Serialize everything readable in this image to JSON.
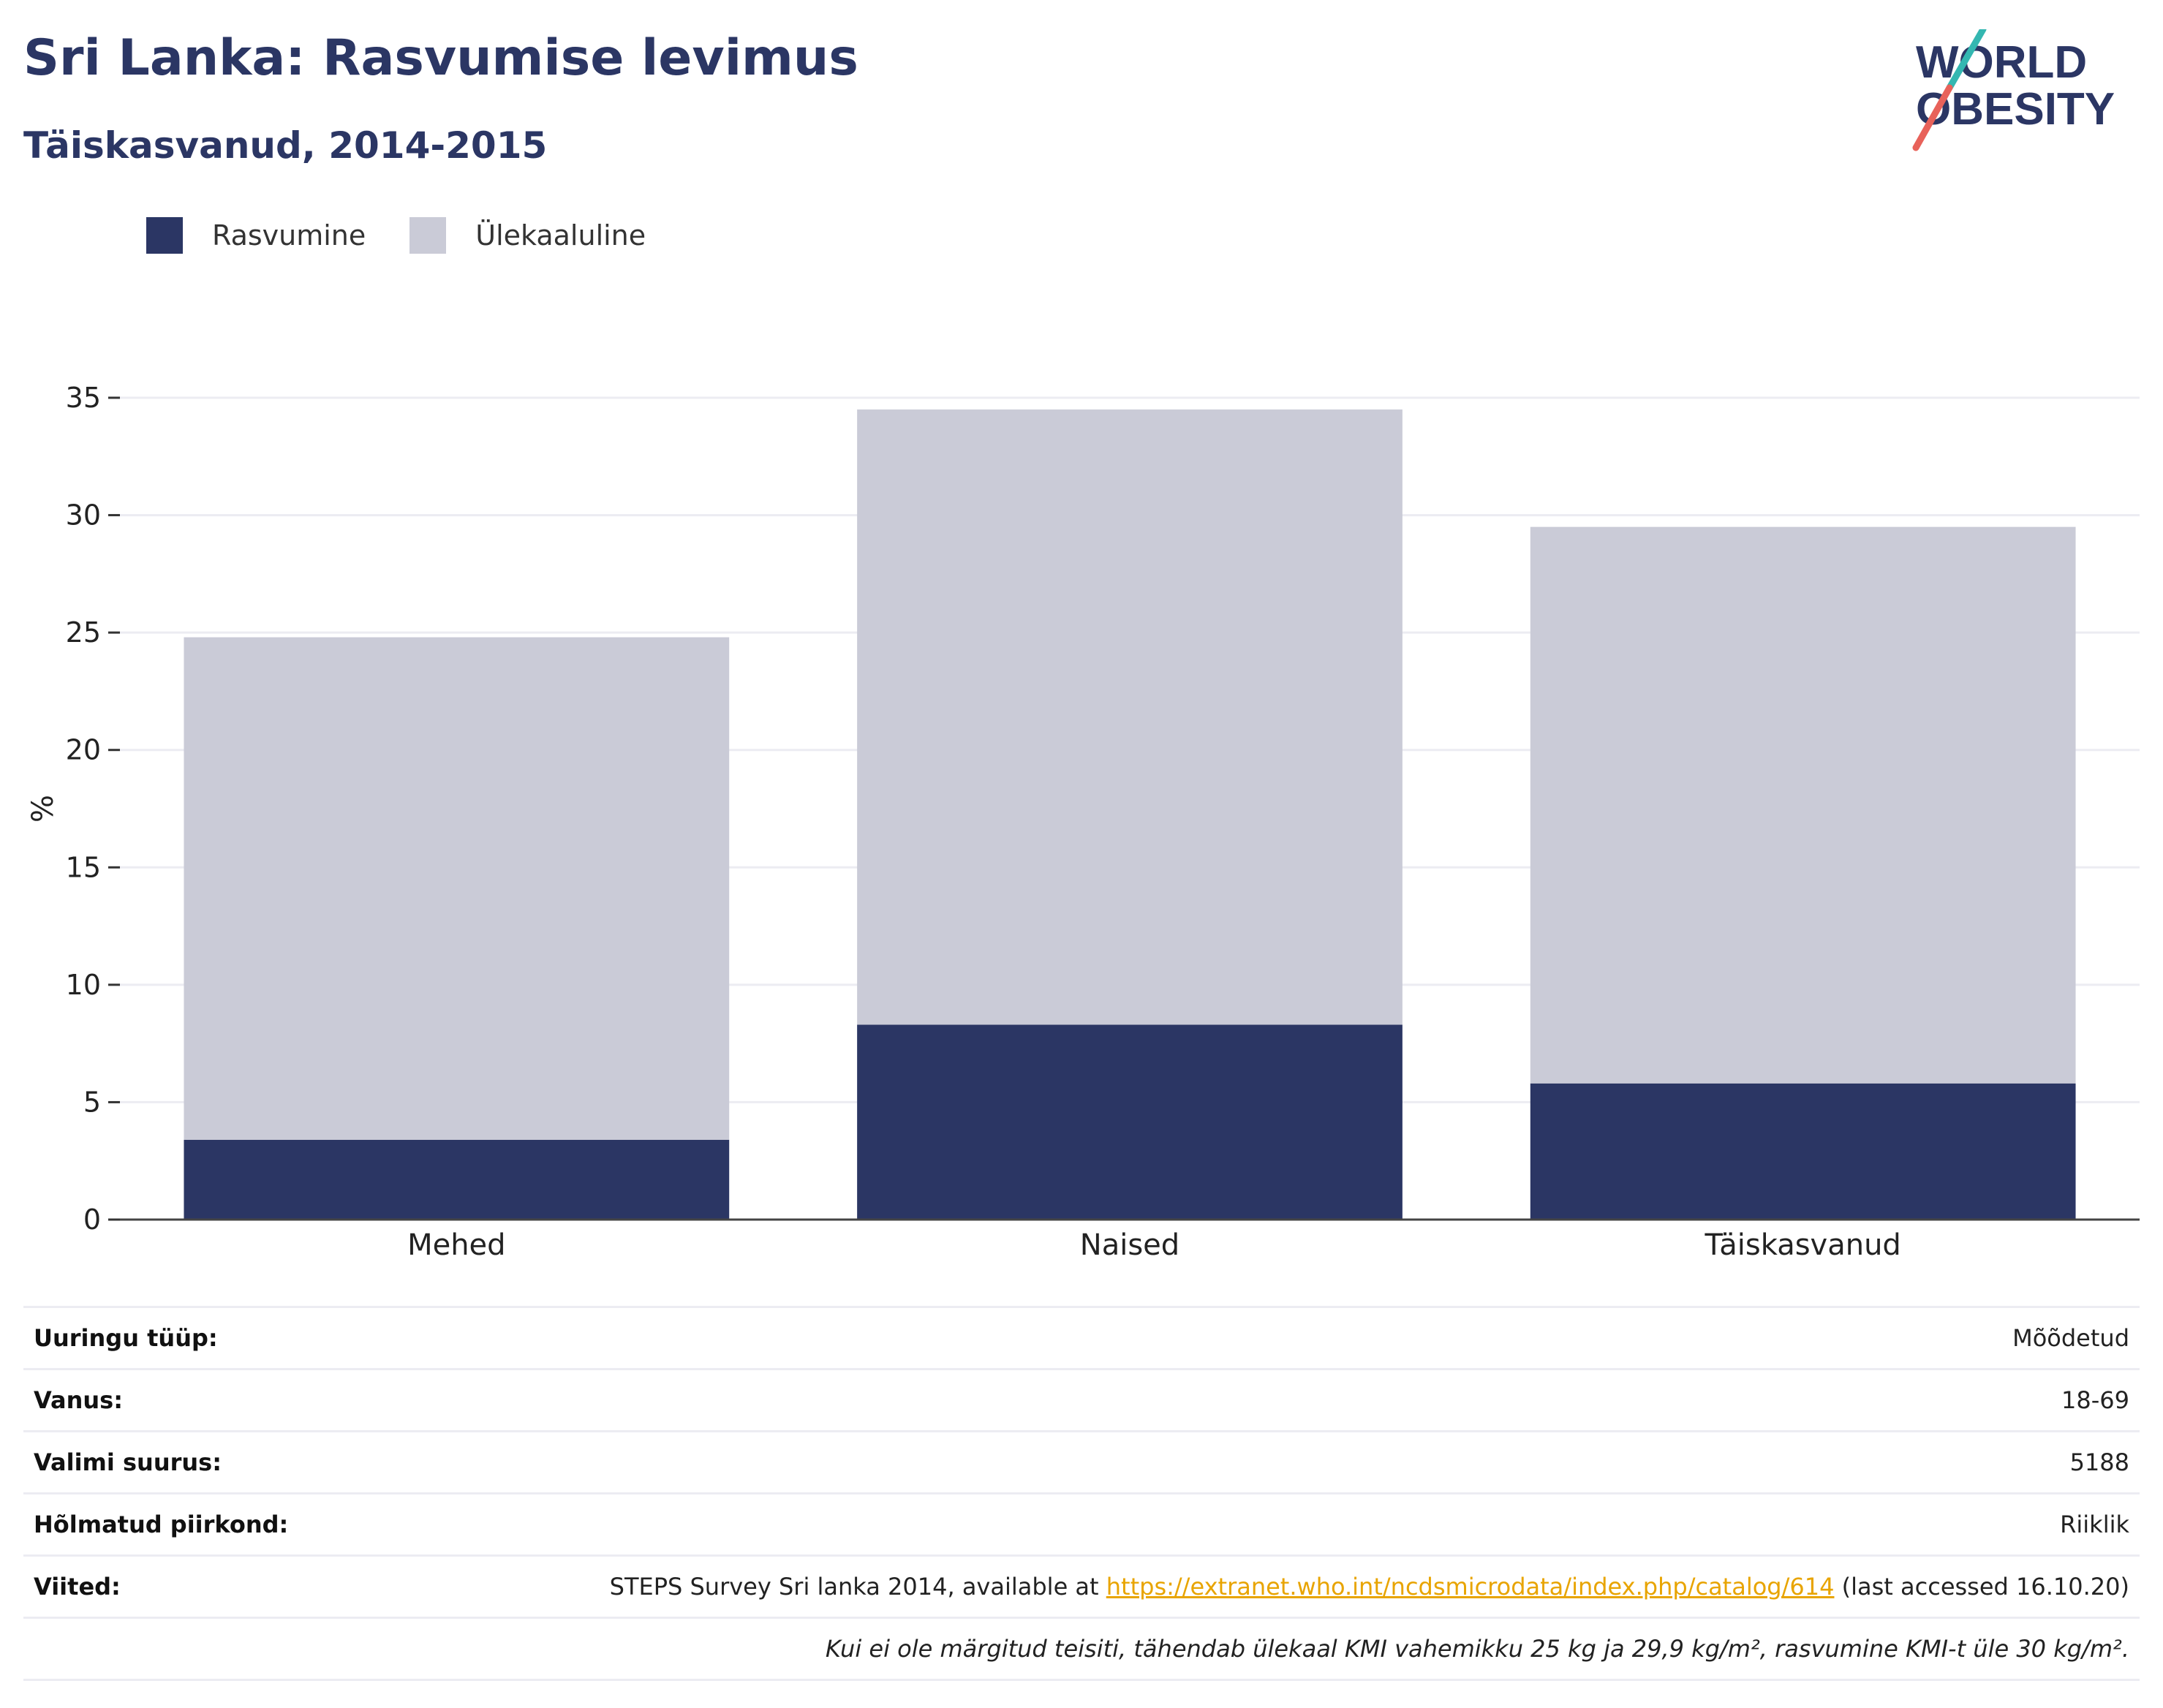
{
  "title": "Sri Lanka: Rasvumise levimus",
  "subtitle": "Täiskasvanud, 2014-2015",
  "logo": {
    "line1": "WORLD",
    "line2": "OBESITY"
  },
  "colors": {
    "obesity": "#2b3664",
    "overweight": "#cacbd7",
    "title": "#2b3664",
    "link": "#e8a400",
    "grid": "#ececf2"
  },
  "legend": [
    {
      "label": "Rasvumine",
      "color": "#2b3664"
    },
    {
      "label": "Ülekaaluline",
      "color": "#cacbd7"
    }
  ],
  "chart_data": {
    "type": "bar",
    "stacked": true,
    "categories": [
      "Mehed",
      "Naised",
      "Täiskasvanud"
    ],
    "series": [
      {
        "name": "Rasvumine",
        "values": [
          3.4,
          8.3,
          5.8
        ]
      },
      {
        "name": "Ülekaaluline",
        "values": [
          21.4,
          26.2,
          23.7
        ]
      }
    ],
    "ylabel": "%",
    "ylim": [
      0,
      35
    ],
    "yticks": [
      0,
      5,
      10,
      15,
      20,
      25,
      30,
      35
    ],
    "grid": true,
    "legend_position": "top-left"
  },
  "meta": {
    "survey_type": {
      "label": "Uuringu tüüp:",
      "value": "Mõõdetud"
    },
    "age": {
      "label": "Vanus:",
      "value": "18-69"
    },
    "sample": {
      "label": "Valimi suurus:",
      "value": "5188"
    },
    "region": {
      "label": "Hõlmatud piirkond:",
      "value": "Riiklik"
    },
    "refs": {
      "label": "Viited:",
      "prefix": "STEPS Survey Sri lanka 2014, available at ",
      "link": "https://extranet.who.int/ncdsmicrodata/index.php/catalog/614",
      "suffix": " (last accessed 16.10.20)"
    },
    "note": "Kui ei ole märgitud teisiti, tähendab ülekaal KMI vahemikku 25 kg ja 29,9 kg/m², rasvumine KMI-t üle 30 kg/m²."
  }
}
